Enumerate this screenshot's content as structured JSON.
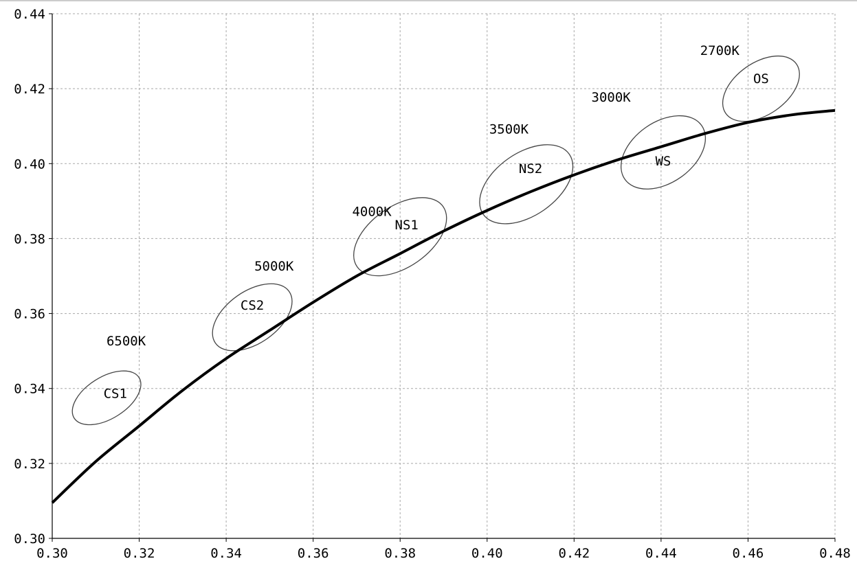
{
  "chart_data": {
    "type": "scatter",
    "title": "",
    "xlabel": "",
    "ylabel": "",
    "xlim": [
      0.3,
      0.48
    ],
    "ylim": [
      0.3,
      0.44
    ],
    "grid": true,
    "x_ticks": [
      "0.30",
      "0.32",
      "0.34",
      "0.36",
      "0.38",
      "0.40",
      "0.42",
      "0.44",
      "0.46",
      "0.48"
    ],
    "y_ticks": [
      "0.30",
      "0.32",
      "0.34",
      "0.36",
      "0.38",
      "0.40",
      "0.42",
      "0.44"
    ],
    "curve": {
      "name": "",
      "x": [
        0.3,
        0.31,
        0.32,
        0.33,
        0.34,
        0.35,
        0.36,
        0.37,
        0.38,
        0.39,
        0.4,
        0.41,
        0.42,
        0.43,
        0.44,
        0.45,
        0.46,
        0.47,
        0.48
      ],
      "y": [
        0.3095,
        0.3205,
        0.33,
        0.3395,
        0.348,
        0.3555,
        0.363,
        0.37,
        0.376,
        0.382,
        0.3875,
        0.3925,
        0.397,
        0.401,
        0.4045,
        0.408,
        0.411,
        0.413,
        0.4142
      ]
    },
    "regions": [
      {
        "name": "CS1",
        "cct": "6500K",
        "cx": 0.3125,
        "cy": 0.3375,
        "rx": 0.0048,
        "ry": 0.0102,
        "angle_deg": 58
      },
      {
        "name": "CS2",
        "cct": "5000K",
        "cx": 0.346,
        "cy": 0.359,
        "rx": 0.006,
        "ry": 0.012,
        "angle_deg": 55
      },
      {
        "name": "NS1",
        "cct": "4000K",
        "cx": 0.38,
        "cy": 0.3805,
        "rx": 0.007,
        "ry": 0.014,
        "angle_deg": 55
      },
      {
        "name": "NS2",
        "cct": "3500K",
        "cx": 0.409,
        "cy": 0.3945,
        "rx": 0.0072,
        "ry": 0.014,
        "angle_deg": 55
      },
      {
        "name": "WS",
        "cct": "3000K",
        "cx": 0.4405,
        "cy": 0.403,
        "rx": 0.007,
        "ry": 0.0125,
        "angle_deg": 55
      },
      {
        "name": "OS",
        "cct": "2700K",
        "cx": 0.463,
        "cy": 0.42,
        "rx": 0.006,
        "ry": 0.0115,
        "angle_deg": 55
      }
    ],
    "region_labels": [
      {
        "text": "CS1",
        "x": 0.3145,
        "y": 0.3375
      },
      {
        "text": "CS2",
        "x": 0.346,
        "y": 0.361
      },
      {
        "text": "NS1",
        "x": 0.3815,
        "y": 0.3825
      },
      {
        "text": "NS2",
        "x": 0.41,
        "y": 0.3975
      },
      {
        "text": "WS",
        "x": 0.4405,
        "y": 0.3995
      },
      {
        "text": "OS",
        "x": 0.463,
        "y": 0.4215
      }
    ],
    "cct_labels": [
      {
        "text": "6500K",
        "x": 0.317,
        "y": 0.3515
      },
      {
        "text": "5000K",
        "x": 0.351,
        "y": 0.3715
      },
      {
        "text": "4000K",
        "x": 0.3735,
        "y": 0.386
      },
      {
        "text": "3500K",
        "x": 0.405,
        "y": 0.408
      },
      {
        "text": "3000K",
        "x": 0.4285,
        "y": 0.4165
      },
      {
        "text": "2700K",
        "x": 0.4535,
        "y": 0.429
      }
    ],
    "colors": {
      "curve": "#000000",
      "ellipse": "#444444",
      "grid": "#a8a8a8",
      "axis": "#000000",
      "text": "#000000"
    }
  }
}
